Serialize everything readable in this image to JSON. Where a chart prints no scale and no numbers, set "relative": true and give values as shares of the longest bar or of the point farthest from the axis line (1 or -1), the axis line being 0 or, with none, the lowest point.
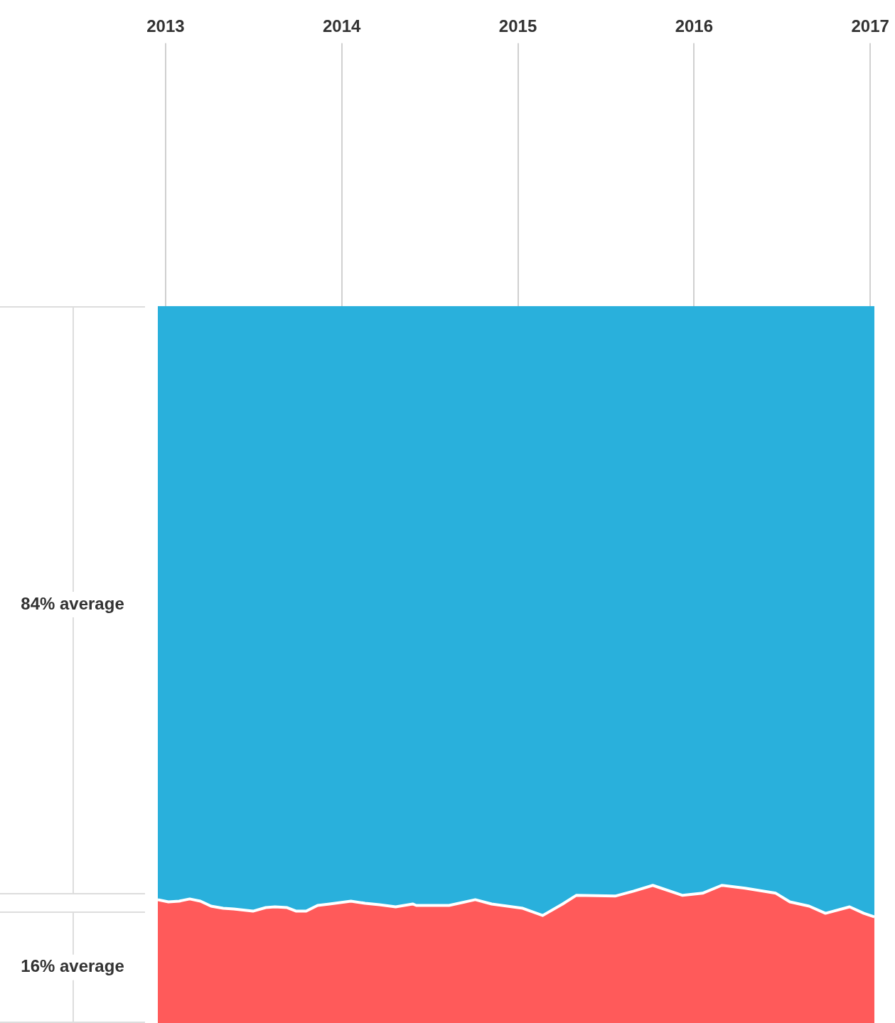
{
  "chart_data": {
    "type": "area",
    "stacked": true,
    "relative": true,
    "marker": "none",
    "legend": false,
    "x": [
      2012.956,
      2013.016,
      2013.077,
      2013.137,
      2013.198,
      2013.258,
      2013.327,
      2013.387,
      2013.496,
      2013.569,
      2013.621,
      2013.69,
      2013.742,
      2013.798,
      2013.863,
      2013.931,
      2014.052,
      2014.133,
      2014.214,
      2014.306,
      2014.403,
      2014.423,
      2014.609,
      2014.758,
      2014.851,
      2015.028,
      2015.141,
      2015.254,
      2015.331,
      2015.552,
      2015.657,
      2015.766,
      2015.935,
      2016.048,
      2016.157,
      2016.29,
      2016.464,
      2016.544,
      2016.653,
      2016.746,
      2016.883,
      2016.964,
      2017.024
    ],
    "xlim": [
      2012.956,
      2017.024
    ],
    "xticks": [
      2013,
      2014,
      2015,
      2016,
      2017
    ],
    "annotations": [
      "84% average",
      "16% average"
    ],
    "series": [
      {
        "color": "#ff5a5a",
        "values": [
          0.172,
          0.169,
          0.17,
          0.173,
          0.17,
          0.163,
          0.16,
          0.159,
          0.156,
          0.161,
          0.162,
          0.161,
          0.156,
          0.156,
          0.164,
          0.166,
          0.17,
          0.167,
          0.165,
          0.162,
          0.166,
          0.164,
          0.164,
          0.172,
          0.166,
          0.16,
          0.15,
          0.166,
          0.178,
          0.177,
          0.184,
          0.192,
          0.178,
          0.181,
          0.192,
          0.188,
          0.181,
          0.169,
          0.163,
          0.153,
          0.162,
          0.153,
          0.148
        ]
      },
      {
        "color": "#29b0dc",
        "values": [
          0.828,
          0.831,
          0.83,
          0.827,
          0.83,
          0.837,
          0.84,
          0.841,
          0.844,
          0.839,
          0.838,
          0.839,
          0.844,
          0.844,
          0.836,
          0.834,
          0.83,
          0.833,
          0.835,
          0.838,
          0.834,
          0.836,
          0.836,
          0.828,
          0.834,
          0.84,
          0.85,
          0.834,
          0.822,
          0.823,
          0.816,
          0.808,
          0.822,
          0.819,
          0.808,
          0.812,
          0.819,
          0.831,
          0.837,
          0.847,
          0.838,
          0.847,
          0.852
        ]
      }
    ]
  }
}
